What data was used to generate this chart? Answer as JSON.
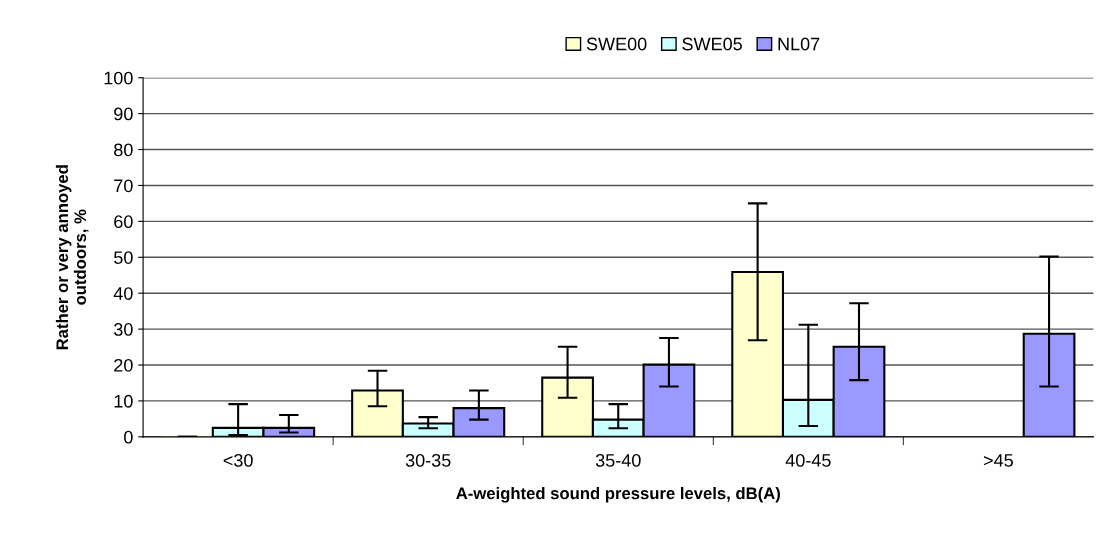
{
  "chart_data": {
    "type": "bar",
    "xlabel": "A-weighted sound pressure levels, dB(A)",
    "ylabel": "Rather or very annoyed\noutdoors, %",
    "categories": [
      "<30",
      "30-35",
      "35-40",
      "40-45",
      ">45"
    ],
    "series": [
      {
        "name": "SWE00",
        "color": "#ffffcc",
        "values": [
          0,
          12.9,
          16.5,
          45.9,
          null
        ],
        "errors": [
          null,
          [
            8.5,
            18.4
          ],
          [
            10.9,
            25.1
          ],
          [
            26.9,
            65
          ],
          null
        ]
      },
      {
        "name": "SWE05",
        "color": "#ccffff",
        "values": [
          2.5,
          3.7,
          4.8,
          10.3,
          null
        ],
        "errors": [
          [
            0.5,
            9.1
          ],
          [
            2.4,
            5.5
          ],
          [
            2.4,
            9.1
          ],
          [
            3.0,
            31.2
          ],
          null
        ]
      },
      {
        "name": "NL07",
        "color": "#9999ff",
        "values": [
          2.5,
          8.0,
          20.1,
          25.1,
          28.7
        ],
        "errors": [
          [
            1.2,
            6.1
          ],
          [
            4.8,
            12.9
          ],
          [
            14.0,
            27.5
          ],
          [
            15.8,
            37.2
          ],
          [
            14.0,
            50.2
          ]
        ]
      }
    ],
    "ylim": [
      0,
      100
    ],
    "yticks": [
      0,
      10,
      20,
      30,
      40,
      50,
      60,
      70,
      80,
      90,
      100
    ],
    "grid": "y",
    "legend": "top"
  }
}
